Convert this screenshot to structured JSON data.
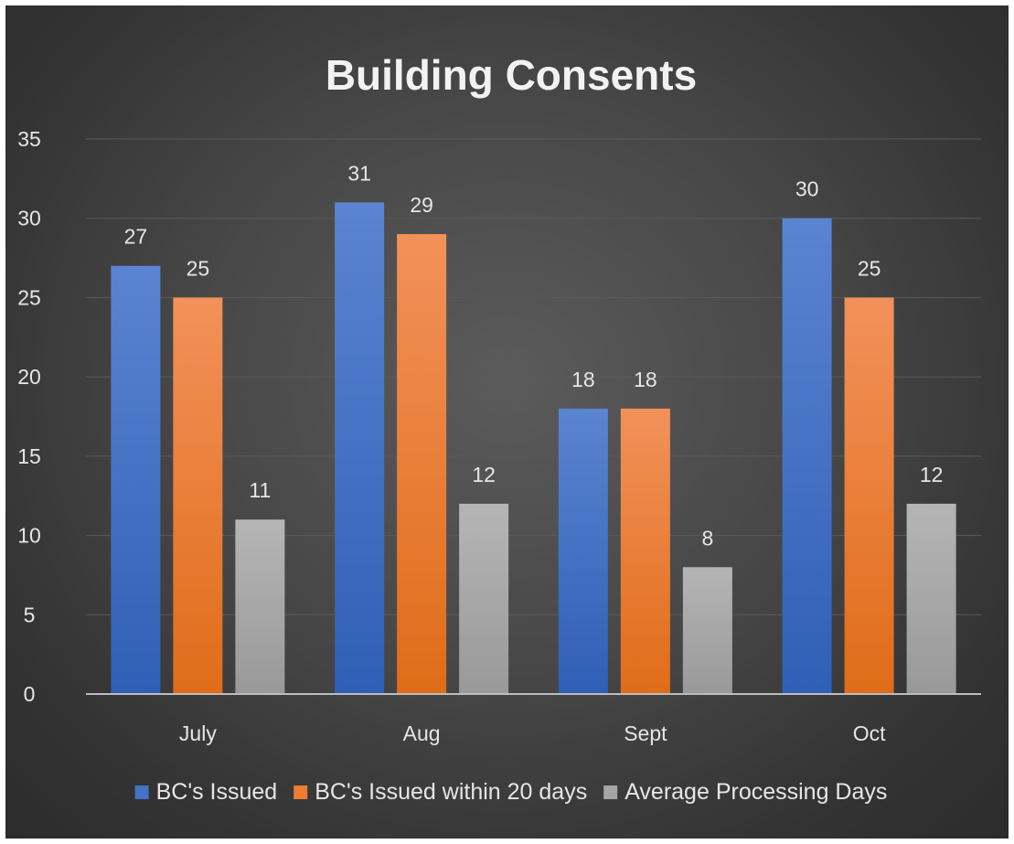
{
  "chart_data": {
    "type": "bar",
    "title": "Building Consents",
    "categories": [
      "July",
      "Aug",
      "Sept",
      "Oct"
    ],
    "series": [
      {
        "name": "BC's Issued",
        "values": [
          27,
          31,
          18,
          30
        ],
        "color": "#4472c4"
      },
      {
        "name": "BC's Issued within 20 days",
        "values": [
          25,
          29,
          18,
          25
        ],
        "color": "#ed7d31"
      },
      {
        "name": "Average Processing Days",
        "values": [
          11,
          12,
          8,
          12
        ],
        "color": "#a5a5a5"
      }
    ],
    "ylim": [
      0,
      35
    ],
    "yticks": [
      0,
      5,
      10,
      15,
      20,
      25,
      30,
      35
    ],
    "grid": true,
    "legend_position": "bottom",
    "data_labels": true
  }
}
